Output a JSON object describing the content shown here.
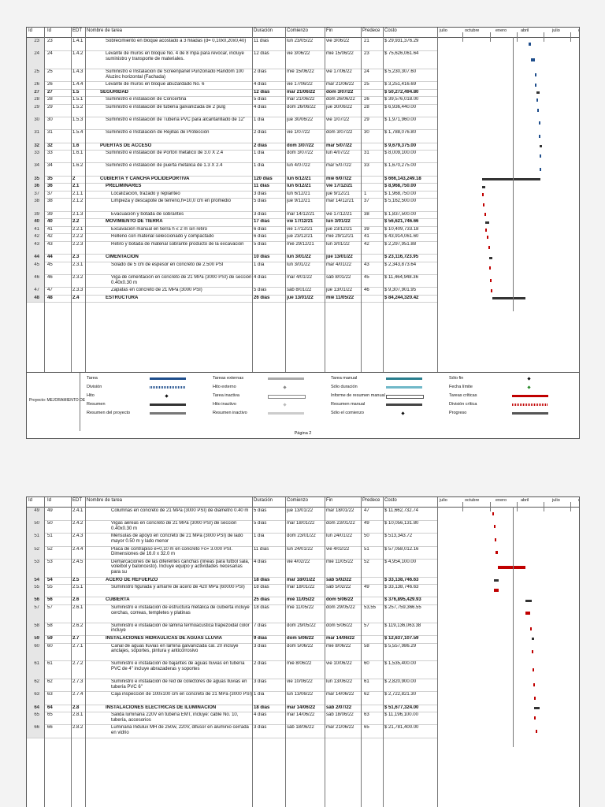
{
  "header": {
    "id": "Id",
    "id2": "Id",
    "edt": "EDT",
    "name": "Nombre de tarea",
    "duration": "Duración",
    "start": "Comienzo",
    "finish": "Fin",
    "pred": "Predece",
    "cost": "Costo",
    "timeline": [
      "julio",
      "octubre",
      "enero",
      "abril",
      "julio",
      "octubre"
    ]
  },
  "page1": {
    "rows": [
      {
        "id": "23",
        "id2": "23",
        "edt": "1.4.1",
        "name": "Sobrecimiento en bloque acostado a 3 hiladas (d= 0,10x0,20x0,40)",
        "dur": "11 días",
        "start": "lun 23/05/22",
        "fin": "vie 3/06/22",
        "pred": "21",
        "cost": "$ 29,931,376.29",
        "sum": false,
        "ind": 1
      },
      {
        "id": "24",
        "id2": "24",
        "edt": "1.4.2",
        "name": "Levante de muros en bloque No. 4 de 8 mpa para revocar, incluye suministro y transporte de materiales.",
        "dur": "12 días",
        "start": "vie 3/06/22",
        "fin": "mié 15/06/22",
        "pred": "23",
        "cost": "$ 75,626,061.64",
        "sum": false,
        "ind": 1
      },
      {
        "id": "25",
        "id2": "25",
        "edt": "1.4.3",
        "name": "Suministro e Instalacion de Screenpanel Punzonado Random 100 Aluzinc horizontal (Fachada)",
        "dur": "2 días",
        "start": "mié 15/06/22",
        "fin": "vie 17/06/22",
        "pred": "24",
        "cost": "$ 5,230,307.60",
        "sum": false,
        "ind": 1
      },
      {
        "id": "26",
        "id2": "26",
        "edt": "1.4.4",
        "name": "Levante de muros en bloque abuzardado No. 6",
        "dur": "4 días",
        "start": "vie 17/06/22",
        "fin": "mar 21/06/22",
        "pred": "25",
        "cost": "$ 3,251,416.69",
        "sum": false,
        "ind": 1
      },
      {
        "id": "27",
        "id2": "27",
        "edt": "1.5",
        "name": "SEGURIDAD",
        "dur": "12 días",
        "start": "mar 21/06/22",
        "fin": "dom 3/07/22",
        "pred": "",
        "cost": "$ 50,272,494.80",
        "sum": true,
        "ind": 0
      },
      {
        "id": "28",
        "id2": "28",
        "edt": "1.5.1",
        "name": "Suministro e instalación de Concertina",
        "dur": "5 días",
        "start": "mar 21/06/22",
        "fin": "dom 26/06/22",
        "pred": "26",
        "cost": "$ 39,576,018.00",
        "sum": false,
        "ind": 1
      },
      {
        "id": "29",
        "id2": "29",
        "edt": "1.5.2",
        "name": "Suministro e instalación de tubería galvanizada de 2 pulg",
        "dur": "4 días",
        "start": "dom 26/06/22",
        "fin": "jue 30/06/22",
        "pred": "28",
        "cost": "$ 6,936,440.00",
        "sum": false,
        "ind": 1
      },
      {
        "id": "30",
        "id2": "30",
        "edt": "1.5.3",
        "name": "Suministro e instalación de Tubería PVC para alcantarillado de 12\"",
        "dur": "1 día",
        "start": "jue 30/06/22",
        "fin": "vie 1/07/22",
        "pred": "29",
        "cost": "$ 1,971,960.00",
        "sum": false,
        "ind": 1
      },
      {
        "id": "31",
        "id2": "31",
        "edt": "1.5.4",
        "name": "Suministro e Instalación de Rejillas de Protección",
        "dur": "2 días",
        "start": "vie 1/07/22",
        "fin": "dom 3/07/22",
        "pred": "30",
        "cost": "$ 1,788,076.80",
        "sum": false,
        "ind": 1
      },
      {
        "id": "32",
        "id2": "32",
        "edt": "1.6",
        "name": "PUERTAS DE ACCESO",
        "dur": "2 días",
        "start": "dom 3/07/22",
        "fin": "mar 5/07/22",
        "pred": "",
        "cost": "$ 9,679,375.00",
        "sum": true,
        "ind": 0
      },
      {
        "id": "33",
        "id2": "33",
        "edt": "1.6.1",
        "name": "Suministro e instalación de Portón metálico de 3.0 X 2.4",
        "dur": "1 día",
        "start": "dom 3/07/22",
        "fin": "lun 4/07/22",
        "pred": "31",
        "cost": "$ 8,009,100.00",
        "sum": false,
        "ind": 1
      },
      {
        "id": "34",
        "id2": "34",
        "edt": "1.6.2",
        "name": "Suministro e instalación de puerta metálica de 1.3 X 2.4",
        "dur": "1 día",
        "start": "lun 4/07/22",
        "fin": "mar 5/07/22",
        "pred": "33",
        "cost": "$ 1,670,275.00",
        "sum": false,
        "ind": 1
      },
      {
        "id": "35",
        "id2": "35",
        "edt": "2",
        "name": "CUBIERTA Y CANCHA POLIDEPORTIVA",
        "dur": "120 días",
        "start": "lun 6/12/21",
        "fin": "mié 6/07/22",
        "pred": "",
        "cost": "$ 666,143,249.18",
        "sum": true,
        "ind": 0
      },
      {
        "id": "36",
        "id2": "36",
        "edt": "2.1",
        "name": "PRELIMINARES",
        "dur": "11 días",
        "start": "lun 6/12/21",
        "fin": "vie 17/12/21",
        "pred": "",
        "cost": "$ 8,968,750.00",
        "sum": true,
        "ind": 1
      },
      {
        "id": "37",
        "id2": "37",
        "edt": "2.1.1",
        "name": "Localización, trazado y replanteo",
        "dur": "3 días",
        "start": "lun 6/12/21",
        "fin": "jue 9/12/21",
        "pred": "1",
        "cost": "$ 1,968,750.00",
        "sum": false,
        "ind": 2
      },
      {
        "id": "38",
        "id2": "38",
        "edt": "2.1.2",
        "name": "Limpieza y descapote de terreno,h=10,0 cm en promedio",
        "dur": "5 días",
        "start": "jue 9/12/21",
        "fin": "mar 14/12/21",
        "pred": "37",
        "cost": "$ 5,162,500.00",
        "sum": false,
        "ind": 2
      },
      {
        "id": "39",
        "id2": "39",
        "edt": "2.1.3",
        "name": "Evacuación y botada de sobrantes",
        "dur": "3 días",
        "start": "mar 14/12/21",
        "fin": "vie 17/12/21",
        "pred": "38",
        "cost": "$ 1,837,500.00",
        "sum": false,
        "ind": 2
      },
      {
        "id": "40",
        "id2": "40",
        "edt": "2.2",
        "name": "MOVIMIENTO DE TIERRA",
        "dur": "17 días",
        "start": "vie 17/12/21",
        "fin": "lun 3/01/22",
        "pred": "",
        "cost": "$ 56,621,746.66",
        "sum": true,
        "ind": 1
      },
      {
        "id": "41",
        "id2": "41",
        "edt": "2.2.1",
        "name": "Excavación manual en tierra h ≤ 2 m sin retiro",
        "dur": "6 días",
        "start": "vie 17/12/21",
        "fin": "jue 23/12/21",
        "pred": "39",
        "cost": "$ 10,409,733.18",
        "sum": false,
        "ind": 2
      },
      {
        "id": "42",
        "id2": "42",
        "edt": "2.2.2",
        "name": "Relleno con material seleccionado y compactado",
        "dur": "6 días",
        "start": "jue 23/12/21",
        "fin": "mié 29/12/21",
        "pred": "41",
        "cost": "$ 43,914,061.60",
        "sum": false,
        "ind": 2
      },
      {
        "id": "43",
        "id2": "43",
        "edt": "2.2.3",
        "name": "Retiro y botada de material sobrante producto de la excavación",
        "dur": "5 días",
        "start": "mié 29/12/21",
        "fin": "lun 3/01/22",
        "pred": "42",
        "cost": "$ 2,297,951.88",
        "sum": false,
        "ind": 2
      },
      {
        "id": "44",
        "id2": "44",
        "edt": "2.3",
        "name": "CIMENTACION",
        "dur": "10 días",
        "start": "lun 3/01/22",
        "fin": "jue 13/01/22",
        "pred": "",
        "cost": "$ 23,116,723.95",
        "sum": true,
        "ind": 1
      },
      {
        "id": "45",
        "id2": "45",
        "edt": "2.3.1",
        "name": "Solado de 5 cm de espesor en concreto de 2.500 PSI",
        "dur": "1 día",
        "start": "lun 3/01/22",
        "fin": "mar 4/01/22",
        "pred": "43",
        "cost": "$ 2,343,873.64",
        "sum": false,
        "ind": 2
      },
      {
        "id": "46",
        "id2": "46",
        "edt": "2.3.2",
        "name": "Viga de cimentación en concreto de 21 MPa (3000 PSI) de sección 0.40x0.30 m",
        "dur": "4 días",
        "start": "mar 4/01/22",
        "fin": "sáb 8/01/22",
        "pred": "45",
        "cost": "$ 11,464,948.36",
        "sum": false,
        "ind": 2
      },
      {
        "id": "47",
        "id2": "47",
        "edt": "2.3.3",
        "name": "Zapatas en concreto de 21 MPa (3000 PSI)",
        "dur": "5 días",
        "start": "sáb 8/01/22",
        "fin": "jue 13/01/22",
        "pred": "46",
        "cost": "$ 9,307,901.95",
        "sum": false,
        "ind": 2
      },
      {
        "id": "48",
        "id2": "48",
        "edt": "2.4",
        "name": "ESTRUCTURA",
        "dur": "26 días",
        "start": "jue 13/01/22",
        "fin": "mié 11/05/22",
        "pred": "",
        "cost": "$ 84,244,320.42",
        "sum": true,
        "ind": 1
      }
    ],
    "legend": {
      "project": "Proyecto: MEJORAMIENTO DE",
      "items": [
        "Tarea",
        "División",
        "Hito",
        "Resumen",
        "Resumen del proyecto",
        "Tareas externas",
        "Hito externo",
        "Tarea inactiva",
        "Hito inactivo",
        "Resumen inactivo",
        "Tarea manual",
        "Sólo duración",
        "Informe de resumen manual",
        "Resumen manual",
        "Sólo el comienzo",
        "Sólo fin",
        "Fecha límite",
        "Tareas críticas",
        "División crítica",
        "Progreso"
      ]
    },
    "footer": "Página 2"
  },
  "page2": {
    "rows": [
      {
        "id": "49",
        "id2": "49",
        "edt": "2.4.1",
        "name": "Columnas en concreto de 21 MPa (3000 PSI) de diámetro 0.40 m",
        "dur": "5 días",
        "start": "jue 13/01/22",
        "fin": "mar 18/01/22",
        "pred": "47",
        "cost": "$ 11,662,732.74",
        "sum": false,
        "ind": 2
      },
      {
        "id": "50",
        "id2": "50",
        "edt": "2.4.2",
        "name": "Vigas aéreas en concreto de 21 MPa (3000 PSI) de sección 0.40x0.30 m",
        "dur": "5 días",
        "start": "mar 18/01/22",
        "fin": "dom 23/01/22",
        "pred": "49",
        "cost": "$ 10,056,131.80",
        "sum": false,
        "ind": 2
      },
      {
        "id": "51",
        "id2": "51",
        "edt": "2.4.3",
        "name": "Ménsulas de apoyo en concreto de 21 MPa (3000 PSI) de lado mayor 0.50 m y lado menor",
        "dur": "1 día",
        "start": "dom 23/01/22",
        "fin": "lun 24/01/22",
        "pred": "50",
        "cost": "$ 513,343.72",
        "sum": false,
        "ind": 2
      },
      {
        "id": "52",
        "id2": "52",
        "edt": "2.4.4",
        "name": "Placa de contrapiso e=0,10 m en concreto Fc= 3.000 PSI. Dimensiones de 16.0 x 32.0 m",
        "dur": "11 días",
        "start": "lun 24/01/22",
        "fin": "vie 4/02/22",
        "pred": "51",
        "cost": "$ 57,058,012.16",
        "sum": false,
        "ind": 2
      },
      {
        "id": "53",
        "id2": "53",
        "edt": "2.4.5",
        "name": "Demarcaciones de las diferentes canchas (líneas para futbol sala, voleibol y baloncesto). Incluye equipo y actividades necesarias para su",
        "dur": "4 días",
        "start": "vie 4/02/22",
        "fin": "mié 11/05/22",
        "pred": "52",
        "cost": "$ 4,954,100.00",
        "sum": false,
        "ind": 2
      },
      {
        "id": "54",
        "id2": "54",
        "edt": "2.5",
        "name": "ACERO DE REFUERZO",
        "dur": "18 días",
        "start": "mar 18/01/22",
        "fin": "sáb 5/02/22",
        "pred": "",
        "cost": "$ 33,138,746.63",
        "sum": true,
        "ind": 1
      },
      {
        "id": "55",
        "id2": "55",
        "edt": "2.5.1",
        "name": "Suministro figurada y amarre de acero de 420 MPa (60000 PSI)",
        "dur": "18 días",
        "start": "mar 18/01/22",
        "fin": "sáb 5/02/22",
        "pred": "49",
        "cost": "$ 33,138,746.63",
        "sum": false,
        "ind": 2
      },
      {
        "id": "56",
        "id2": "56",
        "edt": "2.6",
        "name": "CUBIERTA",
        "dur": "25 días",
        "start": "mié 11/05/22",
        "fin": "dom 5/06/22",
        "pred": "",
        "cost": "$ 376,895,429.93",
        "sum": true,
        "ind": 1
      },
      {
        "id": "57",
        "id2": "57",
        "edt": "2.6.1",
        "name": "Suministro e instalación de estructura metálica de cubierta incluye cerchas, correas, templetes y platinas",
        "dur": "18 días",
        "start": "mié 11/05/22",
        "fin": "dom 29/05/22",
        "pred": "53,55",
        "cost": "$ 257,759,366.55",
        "sum": false,
        "ind": 2
      },
      {
        "id": "58",
        "id2": "58",
        "edt": "2.6.2",
        "name": "Suministro e instalación de lámina termoacustica trapezoidal color incluye",
        "dur": "7 días",
        "start": "dom 29/05/22",
        "fin": "dom 5/06/22",
        "pred": "57",
        "cost": "$ 119,136,063.38",
        "sum": false,
        "ind": 2
      },
      {
        "id": "59",
        "id2": "59",
        "edt": "2.7",
        "name": "INSTALACIONES HIDRAULICAS DE AGUAS LLUVIA",
        "dur": "9 días",
        "start": "dom 5/06/22",
        "fin": "mar 14/06/22",
        "pred": "",
        "cost": "$ 12,637,107.59",
        "sum": true,
        "ind": 1
      },
      {
        "id": "60",
        "id2": "60",
        "edt": "2.7.1",
        "name": "Canal de aguas lluvias en lámina galvanizada cal. 20 incluye anclajes, soportes, pintura y anticorrosivo",
        "dur": "3 días",
        "start": "dom 5/06/22",
        "fin": "mié 8/06/22",
        "pred": "58",
        "cost": "$ 5,557,986.29",
        "sum": false,
        "ind": 2
      },
      {
        "id": "61",
        "id2": "61",
        "edt": "2.7.2",
        "name": "Suministro e instalación de bajantes de aguas lluvias en tubería PVC de 4\" incluye abrazaderas y soportes",
        "dur": "2 días",
        "start": "mié 8/06/22",
        "fin": "vie 10/06/22",
        "pred": "60",
        "cost": "$ 1,535,400.00",
        "sum": false,
        "ind": 2
      },
      {
        "id": "62",
        "id2": "62",
        "edt": "2.7.3",
        "name": "Suministro e instalación de red de colectores de aguas lluvias en tubería PVC 6\"",
        "dur": "3 días",
        "start": "vie 10/06/22",
        "fin": "lun 13/06/22",
        "pred": "61",
        "cost": "$ 2,820,900.00",
        "sum": false,
        "ind": 2
      },
      {
        "id": "63",
        "id2": "63",
        "edt": "2.7.4",
        "name": "Caja inspección de 100x100 cm en concreto de 21 MPa (3000 PSI)",
        "dur": "1 día",
        "start": "lun 13/06/22",
        "fin": "mar 14/06/22",
        "pred": "62",
        "cost": "$ 2,722,821.30",
        "sum": false,
        "ind": 2
      },
      {
        "id": "64",
        "id2": "64",
        "edt": "2.8",
        "name": "INSTALACIONES ELECTRICAS DE ILUMINACION",
        "dur": "18 días",
        "start": "mar 14/06/22",
        "fin": "sáb 2/07/22",
        "pred": "",
        "cost": "$ 51,677,324.00",
        "sum": true,
        "ind": 1
      },
      {
        "id": "65",
        "id2": "65",
        "edt": "2.8.1",
        "name": "Salida luminaria 220V en tubería EMT, incluye: cable No. 10, tubería, accesorios",
        "dur": "4 días",
        "start": "mar 14/06/22",
        "fin": "sáb 18/06/22",
        "pred": "63",
        "cost": "$ 11,196,100.00",
        "sum": false,
        "ind": 2
      },
      {
        "id": "66",
        "id2": "66",
        "edt": "2.8.2",
        "name": "Luminaria Indulux MH de 250w, 220V, difusor en aluminio cerrada en vidrio",
        "dur": "3 días",
        "start": "sáb 18/06/22",
        "fin": "mar 21/06/22",
        "pred": "65",
        "cost": "$ 21,781,400.00",
        "sum": false,
        "ind": 2
      }
    ]
  },
  "colors": {
    "task": "#1f4e8c",
    "critical": "#c00000",
    "summary": "#333333",
    "manual": "#2a7f8f"
  }
}
